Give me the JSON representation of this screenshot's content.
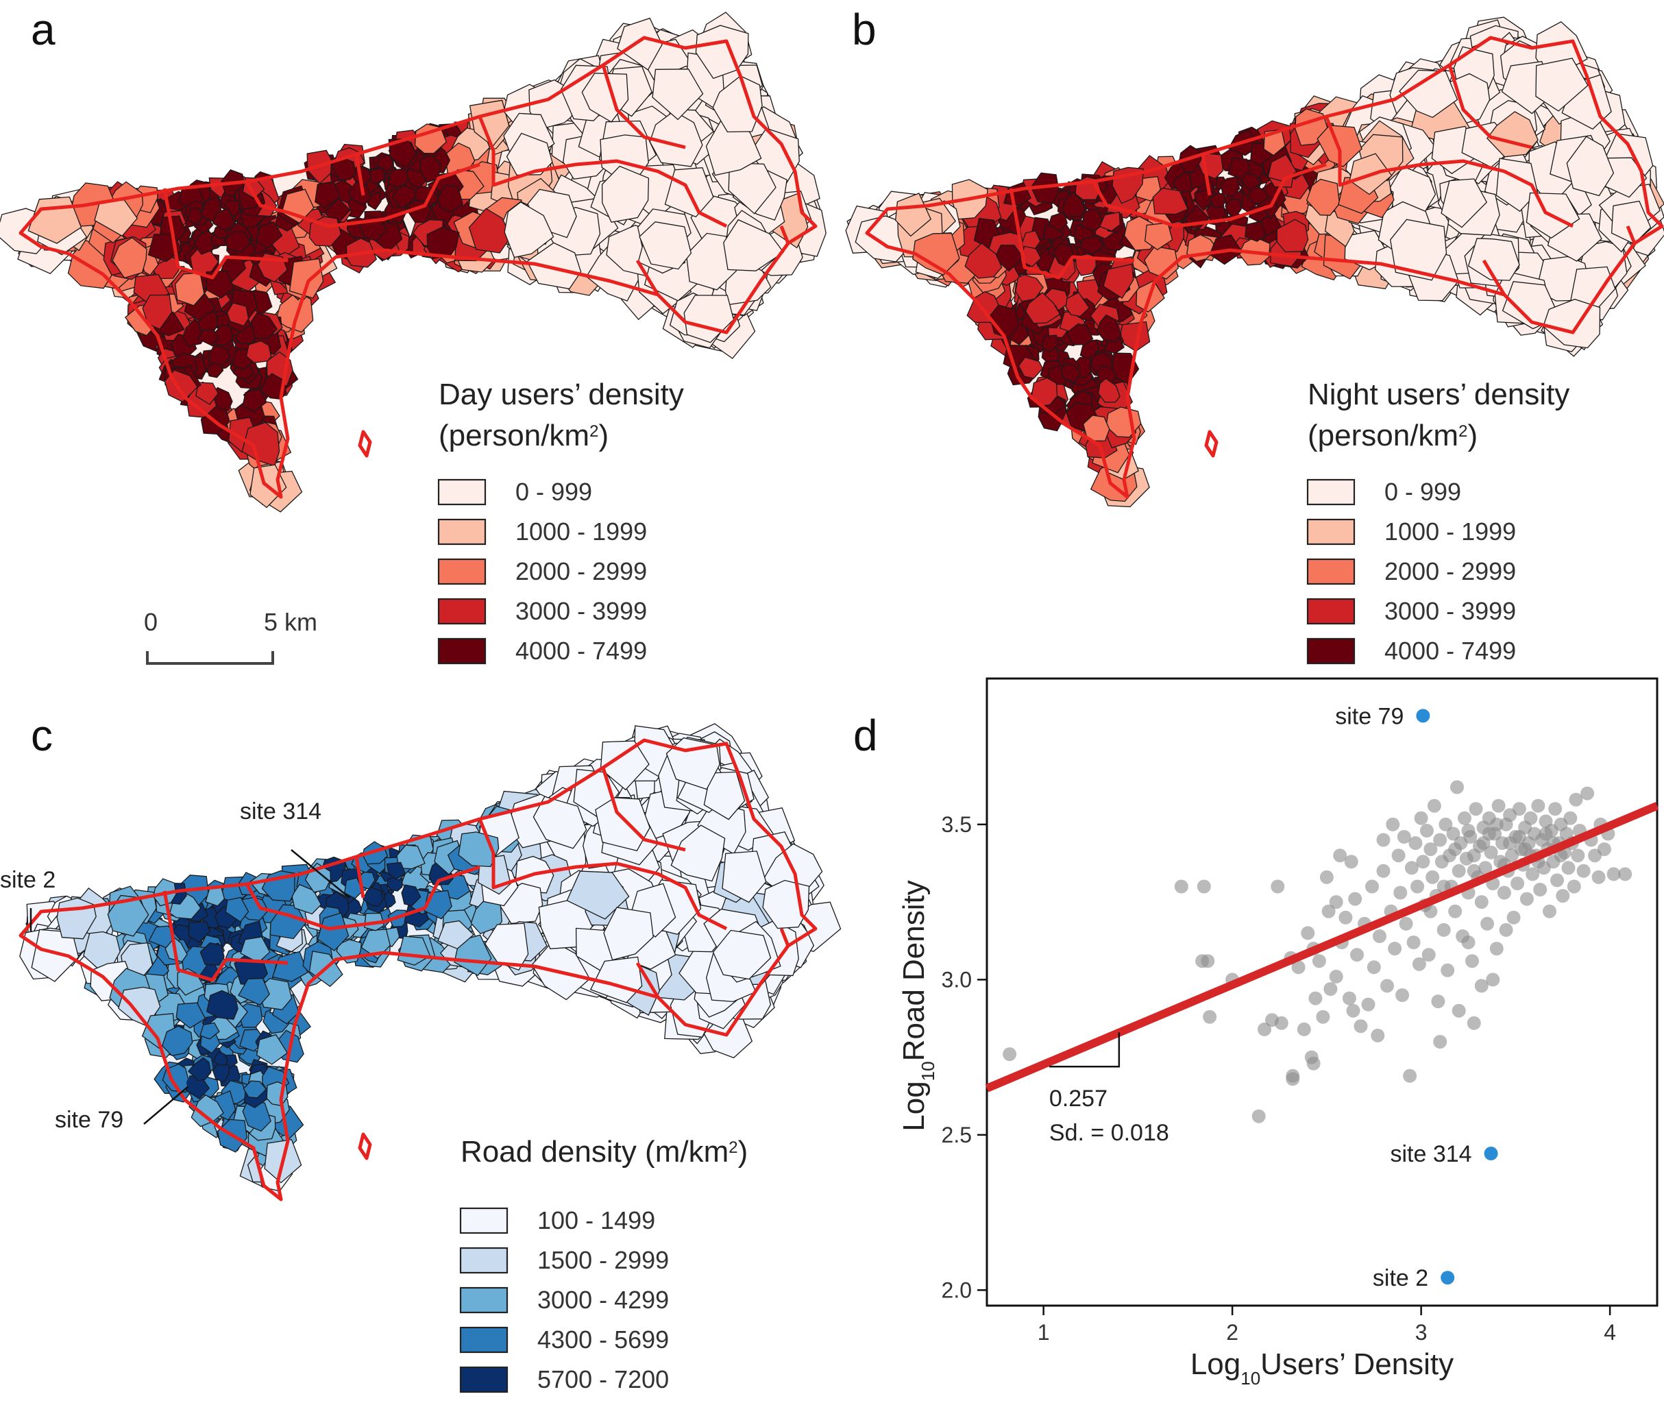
{
  "panels": {
    "a": {
      "letter": "a",
      "legend_title": "Day users’ density",
      "legend_unit": "(person/km",
      "legend_unit_sup": "2",
      "legend_unit_close": ")",
      "classes": [
        "0 - 999",
        "1000 - 1999",
        "2000 - 2999",
        "3000 - 3999",
        "4000 - 7499"
      ],
      "colors": [
        "#fdeee9",
        "#fbbfa7",
        "#f5765a",
        "#cf2227",
        "#67000d"
      ],
      "scale_bar": {
        "start": "0",
        "end": "5 km"
      }
    },
    "b": {
      "letter": "b",
      "legend_title": "Night users’ density",
      "legend_unit": "(person/km",
      "legend_unit_sup": "2",
      "legend_unit_close": ")",
      "classes": [
        "0 - 999",
        "1000 - 1999",
        "2000 - 2999",
        "3000 - 3999",
        "4000 - 7499"
      ],
      "colors": [
        "#fdeee9",
        "#fbbfa7",
        "#f5765a",
        "#cf2227",
        "#67000d"
      ]
    },
    "c": {
      "letter": "c",
      "legend_title": "Road density (m/km",
      "legend_unit_sup": "2",
      "legend_unit_close": ")",
      "classes": [
        "100 - 1499",
        "1500 - 2999",
        "3000 - 4299",
        "4300 - 5699",
        "5700 - 7200"
      ],
      "colors": [
        "#f3f7fd",
        "#c8dbef",
        "#6baed6",
        "#2b7bba",
        "#0b2f6b"
      ],
      "annotations": [
        "site 314",
        "site 2",
        "site 79"
      ]
    },
    "d": {
      "letter": "d"
    }
  },
  "chart_data": {
    "type": "scatter",
    "xlabel_prefix": "Log",
    "xlabel_sub": "10",
    "xlabel_rest": "Users’ Density",
    "ylabel_prefix": "Log",
    "ylabel_sub": "10",
    "ylabel_rest": "Road Density",
    "xlim": [
      0.7,
      4.25
    ],
    "ylim": [
      1.95,
      3.97
    ],
    "xticks": [
      1,
      2,
      3,
      4
    ],
    "yticks": [
      2.0,
      2.5,
      3.0,
      3.5
    ],
    "xtick_labels": [
      "1",
      "2",
      "3",
      "4"
    ],
    "ytick_labels": [
      "2.0",
      "2.5",
      "3.0",
      "3.5"
    ],
    "regression": {
      "x": [
        0.7,
        4.25
      ],
      "y": [
        2.65,
        3.56
      ],
      "color": "#d62728"
    },
    "slope_label": "0.257",
    "sd_label": "Sd. = 0.018",
    "highlighted": [
      {
        "label": "site 79",
        "x": 3.01,
        "y": 3.85
      },
      {
        "label": "site 314",
        "x": 3.37,
        "y": 2.44
      },
      {
        "label": "site 2",
        "x": 3.14,
        "y": 2.04
      }
    ],
    "highlight_color": "#2b8cd6",
    "point_color": "#8c8c8c",
    "points": [
      [
        0.82,
        2.76
      ],
      [
        1.73,
        3.3
      ],
      [
        1.85,
        3.3
      ],
      [
        1.84,
        3.06
      ],
      [
        1.87,
        3.06
      ],
      [
        1.88,
        2.88
      ],
      [
        2.0,
        3.0
      ],
      [
        2.14,
        2.56
      ],
      [
        2.17,
        2.84
      ],
      [
        2.21,
        2.87
      ],
      [
        2.24,
        3.3
      ],
      [
        2.26,
        2.86
      ],
      [
        2.31,
        3.07
      ],
      [
        2.32,
        2.68
      ],
      [
        2.32,
        2.69
      ],
      [
        2.35,
        3.04
      ],
      [
        2.38,
        2.84
      ],
      [
        2.4,
        3.15
      ],
      [
        2.42,
        2.75
      ],
      [
        2.43,
        2.73
      ],
      [
        2.43,
        3.1
      ],
      [
        2.44,
        2.94
      ],
      [
        2.46,
        3.06
      ],
      [
        2.48,
        2.88
      ],
      [
        2.5,
        3.33
      ],
      [
        2.51,
        3.22
      ],
      [
        2.52,
        2.97
      ],
      [
        2.55,
        3.01
      ],
      [
        2.55,
        3.25
      ],
      [
        2.57,
        3.4
      ],
      [
        2.58,
        3.12
      ],
      [
        2.6,
        3.2
      ],
      [
        2.62,
        2.94
      ],
      [
        2.63,
        3.38
      ],
      [
        2.64,
        2.9
      ],
      [
        2.65,
        3.26
      ],
      [
        2.66,
        3.08
      ],
      [
        2.68,
        2.85
      ],
      [
        2.7,
        3.18
      ],
      [
        2.72,
        2.92
      ],
      [
        2.74,
        3.3
      ],
      [
        2.75,
        3.04
      ],
      [
        2.77,
        2.82
      ],
      [
        2.78,
        3.14
      ],
      [
        2.8,
        3.35
      ],
      [
        2.8,
        3.45
      ],
      [
        2.82,
        2.98
      ],
      [
        2.84,
        3.22
      ],
      [
        2.85,
        3.5
      ],
      [
        2.86,
        3.1
      ],
      [
        2.88,
        3.4
      ],
      [
        2.89,
        3.28
      ],
      [
        2.9,
        2.95
      ],
      [
        2.91,
        3.46
      ],
      [
        2.92,
        3.18
      ],
      [
        2.94,
        2.69
      ],
      [
        2.95,
        3.36
      ],
      [
        2.96,
        3.12
      ],
      [
        2.97,
        3.44
      ],
      [
        2.98,
        3.3
      ],
      [
        2.99,
        3.05
      ],
      [
        3.0,
        3.52
      ],
      [
        3.01,
        3.38
      ],
      [
        3.02,
        3.24
      ],
      [
        3.03,
        3.48
      ],
      [
        3.04,
        3.08
      ],
      [
        3.05,
        3.42
      ],
      [
        3.06,
        3.33
      ],
      [
        3.07,
        3.56
      ],
      [
        3.08,
        3.27
      ],
      [
        3.09,
        2.93
      ],
      [
        3.1,
        3.45
      ],
      [
        3.11,
        3.38
      ],
      [
        3.12,
        3.16
      ],
      [
        3.13,
        3.5
      ],
      [
        3.14,
        3.03
      ],
      [
        3.15,
        3.4
      ],
      [
        3.16,
        3.3
      ],
      [
        3.17,
        3.47
      ],
      [
        3.18,
        3.22
      ],
      [
        3.19,
        3.62
      ],
      [
        3.2,
        3.35
      ],
      [
        3.21,
        3.44
      ],
      [
        3.22,
        3.14
      ],
      [
        3.23,
        3.52
      ],
      [
        3.24,
        3.39
      ],
      [
        3.25,
        3.28
      ],
      [
        3.26,
        3.46
      ],
      [
        3.27,
        3.06
      ],
      [
        3.28,
        3.4
      ],
      [
        3.29,
        3.55
      ],
      [
        3.3,
        3.33
      ],
      [
        3.31,
        3.43
      ],
      [
        3.32,
        3.25
      ],
      [
        3.33,
        3.49
      ],
      [
        3.34,
        3.36
      ],
      [
        3.35,
        3.18
      ],
      [
        3.36,
        3.52
      ],
      [
        3.37,
        3.41
      ],
      [
        3.38,
        3.31
      ],
      [
        3.39,
        3.47
      ],
      [
        3.4,
        3.1
      ],
      [
        3.41,
        3.56
      ],
      [
        3.42,
        3.38
      ],
      [
        3.43,
        3.44
      ],
      [
        3.44,
        3.28
      ],
      [
        3.45,
        3.5
      ],
      [
        3.46,
        3.35
      ],
      [
        3.47,
        3.53
      ],
      [
        3.48,
        3.4
      ],
      [
        3.49,
        3.2
      ],
      [
        3.5,
        3.46
      ],
      [
        3.51,
        3.31
      ],
      [
        3.52,
        3.55
      ],
      [
        3.53,
        3.42
      ],
      [
        3.54,
        3.37
      ],
      [
        3.55,
        3.49
      ],
      [
        3.56,
        3.26
      ],
      [
        3.57,
        3.44
      ],
      [
        3.58,
        3.52
      ],
      [
        3.59,
        3.34
      ],
      [
        3.6,
        3.47
      ],
      [
        3.61,
        3.4
      ],
      [
        3.62,
        3.56
      ],
      [
        3.63,
        3.29
      ],
      [
        3.64,
        3.45
      ],
      [
        3.65,
        3.36
      ],
      [
        3.66,
        3.51
      ],
      [
        3.67,
        3.42
      ],
      [
        3.68,
        3.22
      ],
      [
        3.69,
        3.48
      ],
      [
        3.7,
        3.38
      ],
      [
        3.71,
        3.55
      ],
      [
        3.72,
        3.32
      ],
      [
        3.73,
        3.44
      ],
      [
        3.74,
        3.5
      ],
      [
        3.75,
        3.27
      ],
      [
        3.76,
        3.41
      ],
      [
        3.77,
        3.47
      ],
      [
        3.78,
        3.36
      ],
      [
        3.79,
        3.52
      ],
      [
        3.8,
        3.44
      ],
      [
        3.81,
        3.3
      ],
      [
        3.82,
        3.58
      ],
      [
        3.83,
        3.4
      ],
      [
        3.84,
        3.48
      ],
      [
        3.86,
        3.35
      ],
      [
        3.88,
        3.6
      ],
      [
        3.9,
        3.45
      ],
      [
        3.92,
        3.4
      ],
      [
        3.94,
        3.33
      ],
      [
        3.95,
        3.5
      ],
      [
        3.97,
        3.42
      ],
      [
        3.99,
        3.47
      ],
      [
        4.02,
        3.34
      ],
      [
        4.08,
        3.34
      ],
      [
        3.05,
        3.22
      ],
      [
        3.12,
        3.3
      ],
      [
        3.18,
        3.42
      ],
      [
        3.25,
        3.48
      ],
      [
        3.33,
        3.44
      ],
      [
        3.4,
        3.5
      ],
      [
        3.47,
        3.44
      ],
      [
        3.55,
        3.42
      ],
      [
        3.62,
        3.38
      ],
      [
        3.7,
        3.44
      ],
      [
        3.28,
        3.35
      ],
      [
        3.36,
        3.47
      ],
      [
        3.44,
        3.37
      ],
      [
        3.52,
        3.46
      ],
      [
        3.58,
        3.4
      ],
      [
        3.66,
        3.47
      ],
      [
        3.74,
        3.4
      ],
      [
        3.32,
        2.98
      ],
      [
        3.2,
        2.9
      ],
      [
        3.45,
        3.16
      ],
      [
        3.25,
        3.12
      ],
      [
        3.1,
        2.8
      ],
      [
        3.28,
        2.86
      ],
      [
        3.38,
        3.0
      ]
    ]
  }
}
